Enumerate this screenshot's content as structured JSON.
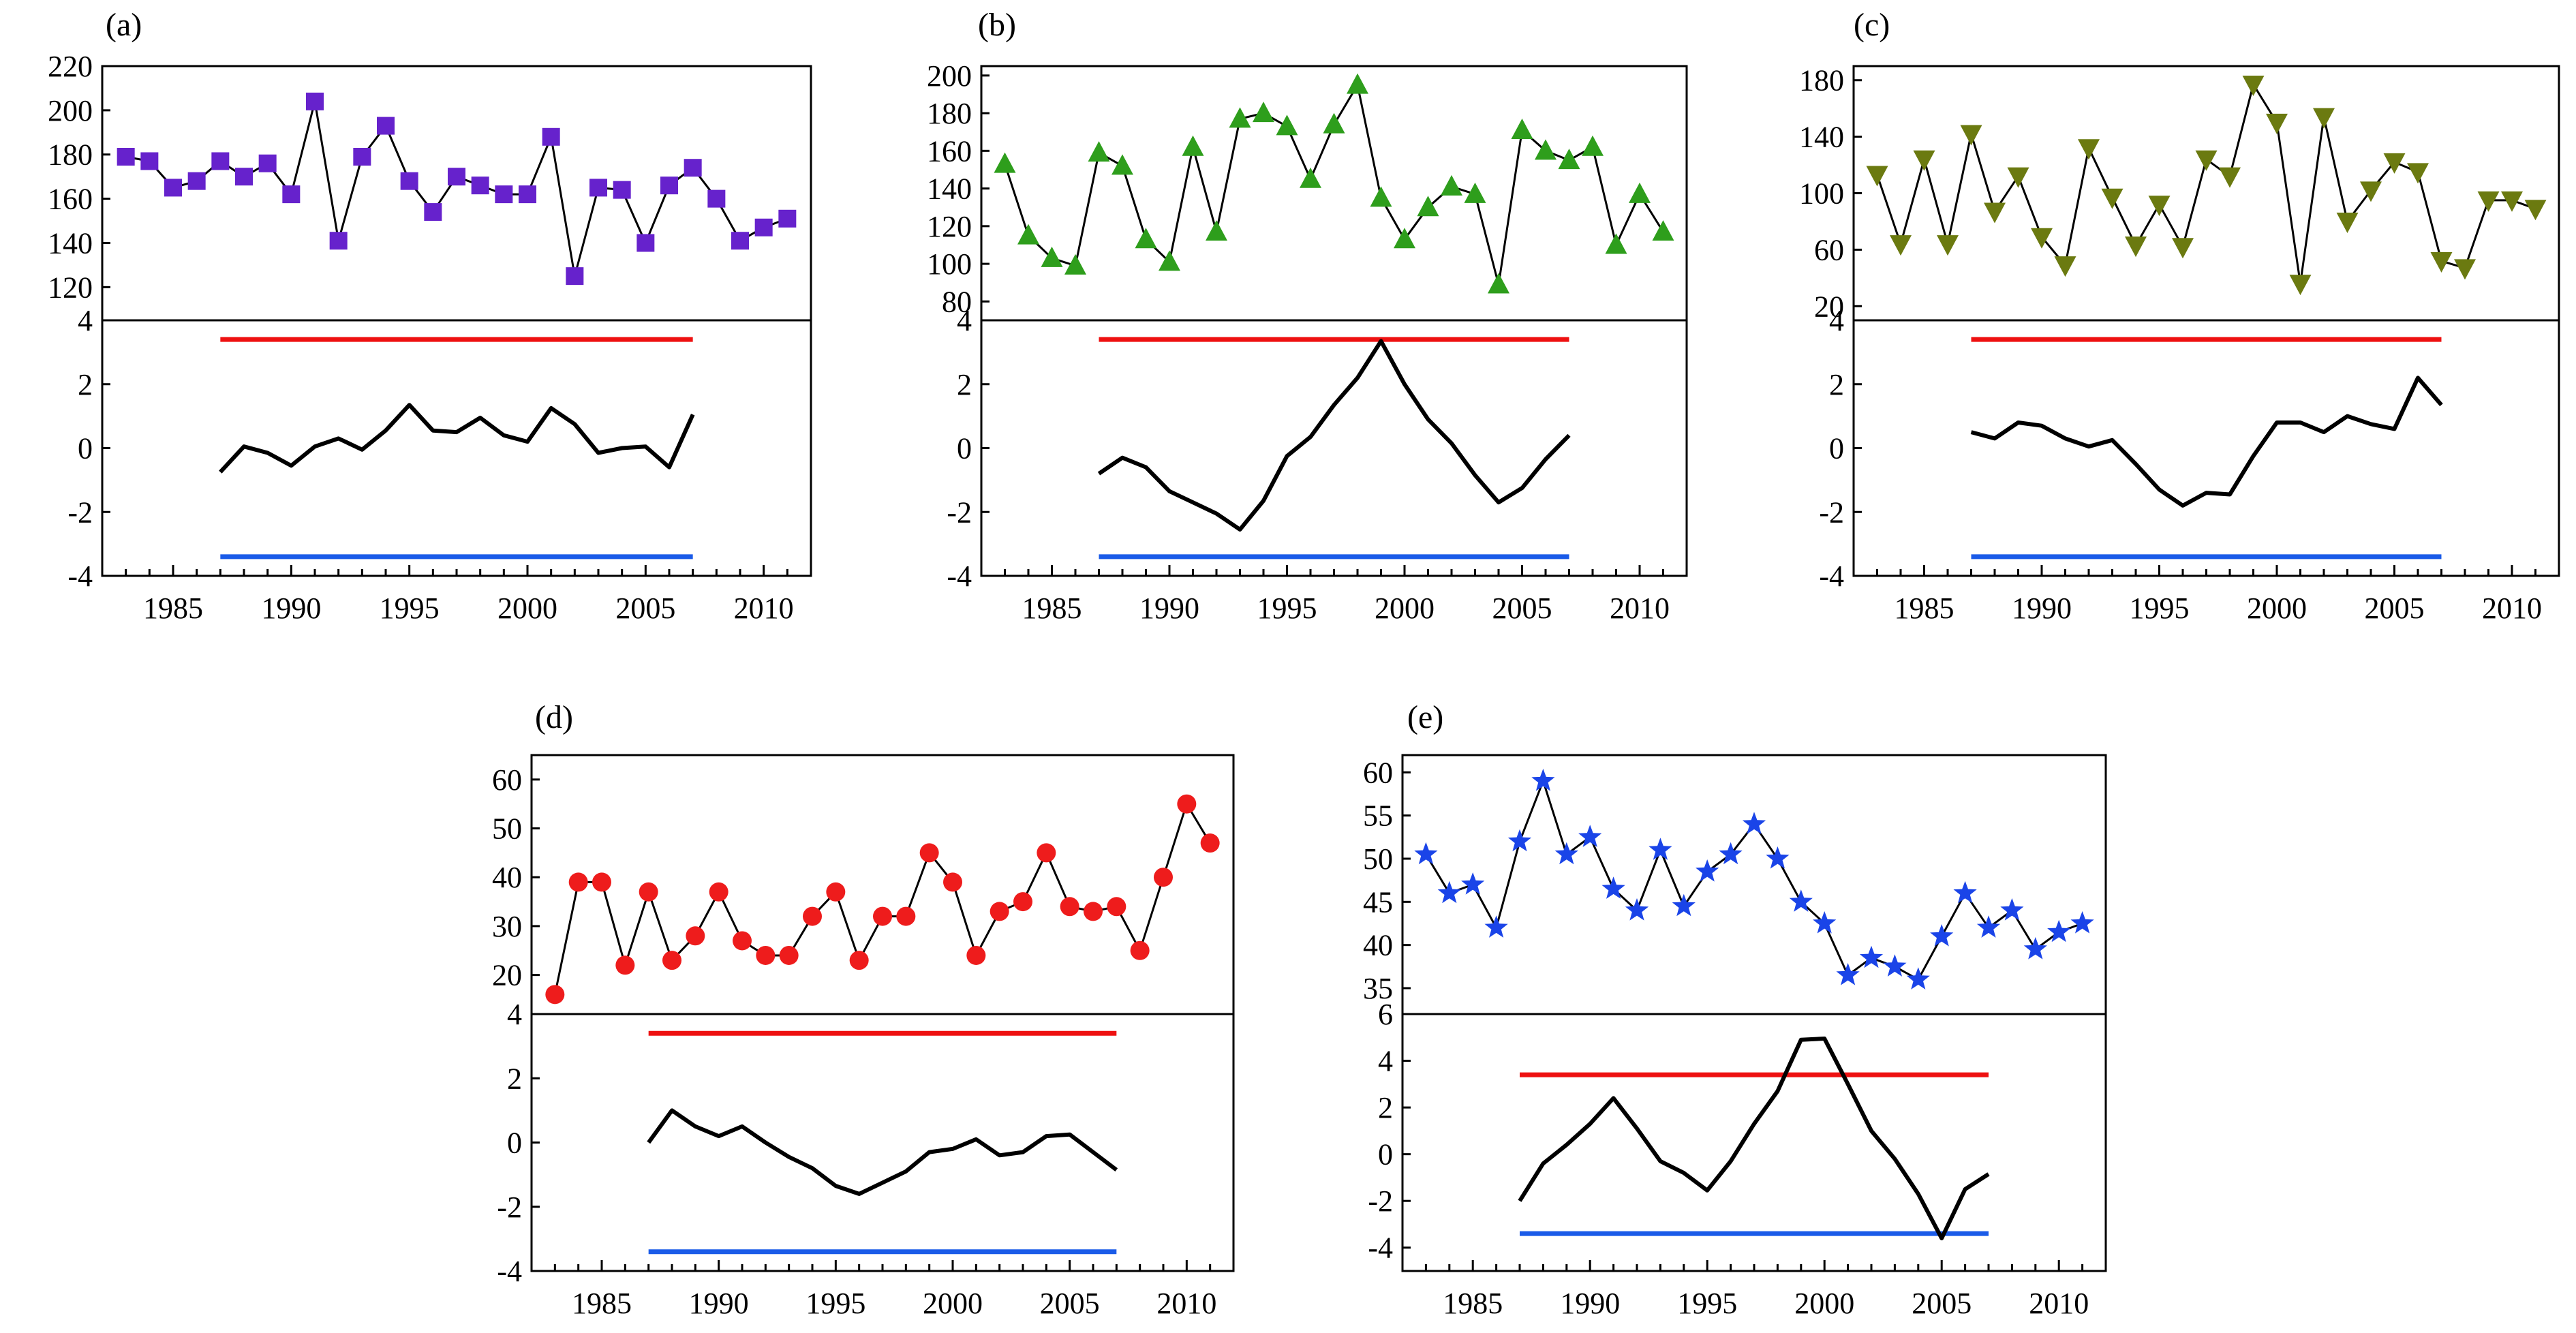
{
  "figure": {
    "panel_labels": [
      "(a)",
      "(b)",
      "(c)",
      "(d)",
      "(e)"
    ]
  },
  "chart_data": [
    {
      "panel": "(a)",
      "type": "line",
      "marker": "square",
      "marker_color": "#6622cc",
      "upper": {
        "x": [
          1983,
          1984,
          1985,
          1986,
          1987,
          1988,
          1989,
          1990,
          1991,
          1992,
          1993,
          1994,
          1995,
          1996,
          1997,
          1998,
          1999,
          2000,
          2001,
          2002,
          2003,
          2004,
          2005,
          2006,
          2007,
          2008,
          2009,
          2010,
          2011
        ],
        "values": [
          179,
          177,
          165,
          168,
          177,
          170,
          176,
          162,
          204,
          141,
          179,
          193,
          168,
          154,
          170,
          166,
          162,
          162,
          188,
          125,
          165,
          164,
          140,
          166,
          174,
          160,
          141,
          147,
          151
        ],
        "ylim": [
          105,
          220
        ],
        "yticks": [
          120,
          140,
          160,
          180,
          200,
          220
        ],
        "ytick_labels": [
          "120",
          "140",
          "160",
          "180",
          "200",
          "220"
        ]
      },
      "lower": {
        "x": [
          1987,
          1988,
          1989,
          1990,
          1991,
          1992,
          1993,
          1994,
          1995,
          1996,
          1997,
          1998,
          1999,
          2000,
          2001,
          2002,
          2003,
          2004,
          2005,
          2006,
          2007
        ],
        "values": [
          -0.75,
          0.05,
          -0.15,
          -0.55,
          0.05,
          0.3,
          -0.05,
          0.55,
          1.35,
          0.55,
          0.5,
          0.95,
          0.4,
          0.2,
          1.25,
          0.75,
          -0.15,
          0.0,
          0.05,
          -0.6,
          1.05
        ],
        "threshold_upper": 3.4,
        "threshold_lower": -3.4,
        "threshold_x": [
          1987,
          2007
        ],
        "ylim": [
          -4,
          4
        ],
        "yticks": [
          -4,
          -2,
          0,
          2,
          4
        ],
        "ytick_labels": [
          "-4",
          "-2",
          "0",
          "2",
          "4"
        ]
      },
      "xlim": [
        1982,
        2012
      ],
      "xticks": [
        1985,
        1990,
        1995,
        2000,
        2005,
        2010
      ],
      "xtick_labels": [
        "1985",
        "1990",
        "1995",
        "2000",
        "2005",
        "2010"
      ]
    },
    {
      "panel": "(b)",
      "type": "line",
      "marker": "triangle-up",
      "marker_color": "#2e9e1c",
      "upper": {
        "x": [
          1983,
          1984,
          1985,
          1986,
          1987,
          1988,
          1989,
          1990,
          1991,
          1992,
          1993,
          1994,
          1995,
          1996,
          1997,
          1998,
          1999,
          2000,
          2001,
          2002,
          2003,
          2004,
          2005,
          2006,
          2007,
          2008,
          2009,
          2010,
          2011
        ],
        "values": [
          153,
          115,
          103,
          99,
          159,
          152,
          113,
          101,
          162,
          117,
          177,
          180,
          173,
          145,
          174,
          195,
          135,
          113,
          130,
          141,
          137,
          89,
          171,
          160,
          155,
          162,
          110,
          137,
          117
        ],
        "ylim": [
          70,
          205
        ],
        "yticks": [
          80,
          100,
          120,
          140,
          160,
          180,
          200
        ],
        "ytick_labels": [
          "80",
          "100",
          "120",
          "140",
          "160",
          "180",
          "200"
        ]
      },
      "lower": {
        "x": [
          1987,
          1988,
          1989,
          1990,
          1991,
          1992,
          1993,
          1994,
          1995,
          1996,
          1997,
          1998,
          1999,
          2000,
          2001,
          2002,
          2003,
          2004,
          2005,
          2006,
          2007
        ],
        "values": [
          -0.8,
          -0.3,
          -0.6,
          -1.35,
          -1.7,
          -2.05,
          -2.55,
          -1.65,
          -0.25,
          0.35,
          1.35,
          2.2,
          3.35,
          2.0,
          0.9,
          0.15,
          -0.85,
          -1.7,
          -1.25,
          -0.35,
          0.4
        ],
        "threshold_upper": 3.4,
        "threshold_lower": -3.4,
        "threshold_x": [
          1987,
          2007
        ],
        "ylim": [
          -4,
          4
        ],
        "yticks": [
          -4,
          -2,
          0,
          2,
          4
        ],
        "ytick_labels": [
          "-4",
          "-2",
          "0",
          "2",
          "4"
        ]
      },
      "xlim": [
        1982,
        2012
      ],
      "xticks": [
        1985,
        1990,
        1995,
        2000,
        2005,
        2010
      ],
      "xtick_labels": [
        "1985",
        "1990",
        "1995",
        "2000",
        "2005",
        "2010"
      ]
    },
    {
      "panel": "(c)",
      "type": "line",
      "marker": "triangle-down",
      "marker_color": "#6b7a10",
      "upper": {
        "x": [
          1983,
          1984,
          1985,
          1986,
          1987,
          1988,
          1989,
          1990,
          1991,
          1992,
          1993,
          1994,
          1995,
          1996,
          1997,
          1998,
          1999,
          2000,
          2001,
          2002,
          2003,
          2004,
          2005,
          2006,
          2007,
          2008,
          2009,
          2010,
          2011
        ],
        "values": [
          113,
          64,
          124,
          64,
          142,
          87,
          112,
          69,
          49,
          132,
          97,
          63,
          92,
          62,
          124,
          112,
          177,
          150,
          36,
          154,
          80,
          102,
          122,
          115,
          52,
          47,
          95,
          95,
          89
        ],
        "ylim": [
          10,
          190
        ],
        "yticks": [
          20,
          60,
          100,
          140,
          180
        ],
        "ytick_labels": [
          "20",
          "60",
          "100",
          "140",
          "180"
        ]
      },
      "lower": {
        "x": [
          1987,
          1988,
          1989,
          1990,
          1991,
          1992,
          1993,
          1994,
          1995,
          1996,
          1997,
          1998,
          1999,
          2000,
          2001,
          2002,
          2003,
          2004,
          2005,
          2006,
          2007
        ],
        "values": [
          0.5,
          0.3,
          0.8,
          0.7,
          0.3,
          0.05,
          0.25,
          -0.5,
          -1.3,
          -1.8,
          -1.4,
          -1.45,
          -0.25,
          0.8,
          0.8,
          0.5,
          1.0,
          0.75,
          0.6,
          2.2,
          1.35
        ],
        "threshold_upper": 3.4,
        "threshold_lower": -3.4,
        "threshold_x": [
          1987,
          2007
        ],
        "ylim": [
          -4,
          4
        ],
        "yticks": [
          -4,
          -2,
          0,
          2,
          4
        ],
        "ytick_labels": [
          "-4",
          "-2",
          "0",
          "2",
          "4"
        ]
      },
      "xlim": [
        1982,
        2012
      ],
      "xticks": [
        1985,
        1990,
        1995,
        2000,
        2005,
        2010
      ],
      "xtick_labels": [
        "1985",
        "1990",
        "1995",
        "2000",
        "2005",
        "2010"
      ]
    },
    {
      "panel": "(d)",
      "type": "line",
      "marker": "circle",
      "marker_color": "#ee1c1c",
      "upper": {
        "x": [
          1983,
          1984,
          1985,
          1986,
          1987,
          1988,
          1989,
          1990,
          1991,
          1992,
          1993,
          1994,
          1995,
          1996,
          1997,
          1998,
          1999,
          2000,
          2001,
          2002,
          2003,
          2004,
          2005,
          2006,
          2007,
          2008,
          2009,
          2010,
          2011
        ],
        "values": [
          16,
          39,
          39,
          22,
          37,
          23,
          28,
          37,
          27,
          24,
          24,
          32,
          37,
          23,
          32,
          32,
          45,
          39,
          24,
          33,
          35,
          45,
          34,
          33,
          34,
          25,
          40,
          55,
          47
        ],
        "ylim": [
          12,
          65
        ],
        "yticks": [
          20,
          30,
          40,
          50,
          60
        ],
        "ytick_labels": [
          "20",
          "30",
          "40",
          "50",
          "60"
        ]
      },
      "lower": {
        "x": [
          1987,
          1988,
          1989,
          1990,
          1991,
          1992,
          1993,
          1994,
          1995,
          1996,
          1997,
          1998,
          1999,
          2000,
          2001,
          2002,
          2003,
          2004,
          2005,
          2006,
          2007
        ],
        "values": [
          0.0,
          1.0,
          0.5,
          0.2,
          0.5,
          0.0,
          -0.45,
          -0.8,
          -1.35,
          -1.6,
          -1.25,
          -0.9,
          -0.3,
          -0.2,
          0.1,
          -0.4,
          -0.3,
          0.2,
          0.25,
          -0.3,
          -0.85
        ],
        "threshold_upper": 3.4,
        "threshold_lower": -3.4,
        "threshold_x": [
          1987,
          2007
        ],
        "ylim": [
          -4,
          4
        ],
        "yticks": [
          -4,
          -2,
          0,
          2,
          4
        ],
        "ytick_labels": [
          "-4",
          "-2",
          "0",
          "2",
          "4"
        ]
      },
      "xlim": [
        1982,
        2012
      ],
      "xticks": [
        1985,
        1990,
        1995,
        2000,
        2005,
        2010
      ],
      "xtick_labels": [
        "1985",
        "1990",
        "1995",
        "2000",
        "2005",
        "2010"
      ]
    },
    {
      "panel": "(e)",
      "type": "line",
      "marker": "star",
      "marker_color": "#1a44e8",
      "upper": {
        "x": [
          1983,
          1984,
          1985,
          1986,
          1987,
          1988,
          1989,
          1990,
          1991,
          1992,
          1993,
          1994,
          1995,
          1996,
          1997,
          1998,
          1999,
          2000,
          2001,
          2002,
          2003,
          2004,
          2005,
          2006,
          2007,
          2008,
          2009,
          2010,
          2011
        ],
        "values": [
          50.5,
          46,
          47,
          42,
          52,
          59,
          50.5,
          52.5,
          46.5,
          44,
          51,
          44.5,
          48.5,
          50.5,
          54,
          50,
          45,
          42.5,
          36.5,
          38.5,
          37.5,
          36,
          41,
          46,
          42,
          44,
          39.5,
          41.5,
          42.5
        ],
        "ylim": [
          32,
          62
        ],
        "yticks": [
          35,
          40,
          45,
          50,
          55,
          60
        ],
        "ytick_labels": [
          "35",
          "40",
          "45",
          "50",
          "55",
          "60"
        ]
      },
      "lower": {
        "x": [
          1987,
          1988,
          1989,
          1990,
          1991,
          1992,
          1993,
          1994,
          1995,
          1996,
          1997,
          1998,
          1999,
          2000,
          2001,
          2002,
          2003,
          2004,
          2005,
          2006,
          2007
        ],
        "values": [
          -2.0,
          -0.4,
          0.4,
          1.3,
          2.4,
          1.1,
          -0.3,
          -0.8,
          -1.55,
          -0.3,
          1.3,
          2.7,
          4.9,
          4.95,
          3.0,
          1.0,
          -0.2,
          -1.7,
          -3.6,
          -1.5,
          -0.85
        ],
        "threshold_upper": 3.4,
        "threshold_lower": -3.4,
        "threshold_x": [
          1987,
          2007
        ],
        "ylim": [
          -5,
          6
        ],
        "yticks": [
          -4,
          -2,
          0,
          2,
          4,
          6
        ],
        "ytick_labels": [
          "-4",
          "-2",
          "0",
          "2",
          "4",
          "6"
        ]
      },
      "xlim": [
        1982,
        2012
      ],
      "xticks": [
        1985,
        1990,
        1995,
        2000,
        2005,
        2010
      ],
      "xtick_labels": [
        "1985",
        "1990",
        "1995",
        "2000",
        "2005",
        "2010"
      ]
    }
  ]
}
